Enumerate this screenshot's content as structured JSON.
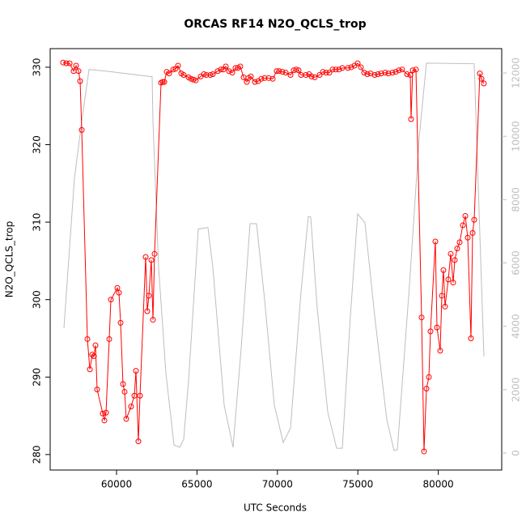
{
  "chart_data": {
    "type": "line",
    "title": "ORCAS RF14 N2O_QCLS_trop",
    "xlabel": "UTC Seconds",
    "ylabel": "N2O_QCLS_trop",
    "xlim": [
      55875,
      83944
    ],
    "ylim": [
      278.0,
      332.4
    ],
    "y2lim": [
      -537,
      12768
    ],
    "xticks": [
      60000,
      65000,
      70000,
      75000,
      80000
    ],
    "yticks": [
      280,
      290,
      300,
      310,
      320,
      330
    ],
    "y2ticks": [
      0,
      2000,
      4000,
      6000,
      8000,
      10000,
      12000
    ],
    "y2color": "#bebebe",
    "series": [
      {
        "color": "#bebebe",
        "axis": "y2",
        "markers": false,
        "x": [
          56730,
          57384,
          57837,
          58290,
          59296,
          62213,
          62264,
          62616,
          63068,
          63571,
          63923,
          64175,
          64477,
          65080,
          65684,
          65986,
          66690,
          67243,
          67746,
          68300,
          68702,
          69205,
          69809,
          70362,
          70815,
          71468,
          71921,
          72072,
          72474,
          73128,
          73682,
          74034,
          74537,
          74989,
          75442,
          76046,
          76800,
          77253,
          77455,
          78209,
          78812,
          79265,
          82233,
          82837
        ],
        "values": [
          3940,
          8680,
          10470,
          12110,
          12060,
          11880,
          10470,
          5860,
          2530,
          256,
          180,
          435,
          2280,
          7070,
          7120,
          5860,
          1510,
          180,
          3300,
          7240,
          7240,
          4840,
          1510,
          330,
          790,
          5090,
          7470,
          7450,
          4580,
          1300,
          150,
          150,
          4330,
          7550,
          7270,
          4330,
          1050,
          80,
          100,
          5300,
          9960,
          12310,
          12290,
          3050
        ]
      },
      {
        "color": "#ff0000",
        "axis": "y",
        "markers": true,
        "x": [
          56680,
          56881,
          57083,
          57334,
          57485,
          57636,
          57737,
          57837,
          58189,
          58340,
          58491,
          58592,
          58692,
          58793,
          59145,
          59246,
          59346,
          59547,
          59648,
          60050,
          60151,
          60252,
          60402,
          60503,
          60604,
          60905,
          61107,
          61207,
          61358,
          61459,
          61811,
          61911,
          62012,
          62163,
          62264,
          62364,
          62767,
          62867,
          62968,
          63119,
          63270,
          63521,
          63672,
          63823,
          64024,
          64175,
          64477,
          64628,
          64779,
          64929,
          65231,
          65432,
          65583,
          65835,
          65986,
          66288,
          66489,
          66640,
          66791,
          66992,
          67193,
          67394,
          67545,
          67696,
          67897,
          68098,
          68199,
          68350,
          68601,
          68803,
          69004,
          69205,
          69456,
          69708,
          69959,
          70110,
          70312,
          70513,
          70815,
          71016,
          71167,
          71317,
          71468,
          71770,
          71971,
          72122,
          72324,
          72625,
          72827,
          73028,
          73229,
          73430,
          73631,
          73832,
          74034,
          74386,
          74587,
          74788,
          74989,
          75191,
          75392,
          75593,
          75794,
          76046,
          76247,
          76448,
          76700,
          76901,
          77152,
          77354,
          77555,
          77756,
          78058,
          78259,
          78309,
          78410,
          78611,
          78963,
          79114,
          79265,
          79416,
          79516,
          79818,
          79919,
          80120,
          80221,
          80321,
          80422,
          80623,
          80774,
          80925,
          81026,
          81177,
          81328,
          81529,
          81680,
          81831,
          82032,
          82133,
          82233,
          82585,
          82686,
          82837
        ],
        "values": [
          330.6,
          330.5,
          330.5,
          329.5,
          330.2,
          329.5,
          328.2,
          321.9,
          294.9,
          291.0,
          292.9,
          292.7,
          294.1,
          288.4,
          285.3,
          284.4,
          285.4,
          294.9,
          300.0,
          301.5,
          300.9,
          297.0,
          289.1,
          288.1,
          284.6,
          286.2,
          287.6,
          290.8,
          281.7,
          287.6,
          305.5,
          298.5,
          300.5,
          305.1,
          297.4,
          305.9,
          328.0,
          328.1,
          328.1,
          329.4,
          329.2,
          329.7,
          329.8,
          330.2,
          329.2,
          329.0,
          328.7,
          328.5,
          328.4,
          328.3,
          328.8,
          329.1,
          329.0,
          329.0,
          329.1,
          329.5,
          329.7,
          329.7,
          330.1,
          329.5,
          329.3,
          329.9,
          329.9,
          330.1,
          328.7,
          328.1,
          328.6,
          328.8,
          328.1,
          328.2,
          328.5,
          328.6,
          328.6,
          328.5,
          329.5,
          329.5,
          329.4,
          329.3,
          329.0,
          329.6,
          329.7,
          329.6,
          329.0,
          329.0,
          329.1,
          328.8,
          328.7,
          329.0,
          329.4,
          329.3,
          329.3,
          329.7,
          329.7,
          329.7,
          329.9,
          329.9,
          330.0,
          330.2,
          330.5,
          330.0,
          329.3,
          329.1,
          329.2,
          329.0,
          329.1,
          329.2,
          329.3,
          329.2,
          329.3,
          329.4,
          329.6,
          329.7,
          329.1,
          329.0,
          323.3,
          329.6,
          329.7,
          297.7,
          280.4,
          288.5,
          290.0,
          295.9,
          307.5,
          296.4,
          293.4,
          300.5,
          303.8,
          299.1,
          302.6,
          305.9,
          302.2,
          305.1,
          306.6,
          307.4,
          309.6,
          310.8,
          308.0,
          295.0,
          308.6,
          310.3,
          329.2,
          328.5,
          327.9
        ]
      }
    ]
  }
}
